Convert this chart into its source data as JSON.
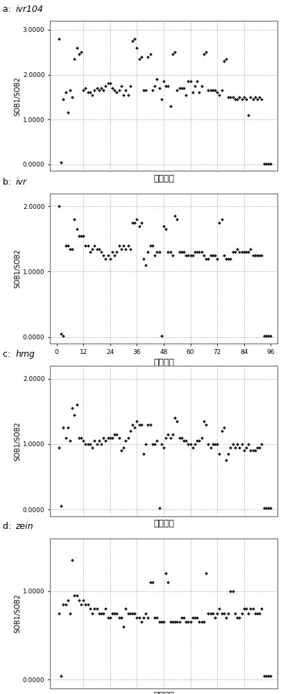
{
  "panels": [
    {
      "label": "a: ",
      "title_italic": "ivr104",
      "ylabel": "SOB1/SOB2",
      "xlabel": "样品数目",
      "ylim": [
        -0.15,
        3.2
      ],
      "yticks": [
        0.0,
        1.0,
        2.0,
        3.0
      ],
      "ytick_labels": [
        "0.0000",
        "1.0000",
        "2.0000",
        "3.0000"
      ],
      "show_xtick_labels": false,
      "xgrid_positions": [
        12,
        24,
        36,
        48,
        60,
        72,
        84
      ],
      "xlim": [
        -3,
        99
      ],
      "x": [
        1,
        2,
        3,
        4,
        5,
        6,
        7,
        8,
        9,
        10,
        11,
        12,
        13,
        14,
        15,
        16,
        17,
        18,
        19,
        20,
        21,
        22,
        23,
        24,
        25,
        26,
        27,
        28,
        29,
        30,
        31,
        32,
        33,
        34,
        35,
        36,
        37,
        38,
        39,
        40,
        41,
        42,
        43,
        44,
        45,
        46,
        47,
        48,
        49,
        50,
        51,
        52,
        53,
        54,
        55,
        56,
        57,
        58,
        59,
        60,
        61,
        62,
        63,
        64,
        65,
        66,
        67,
        68,
        69,
        70,
        71,
        72,
        73,
        74,
        75,
        76,
        77,
        78,
        79,
        80,
        81,
        82,
        83,
        84,
        85,
        86,
        87,
        88,
        89,
        90,
        91,
        92,
        93,
        94,
        95,
        96
      ],
      "y": [
        2.8,
        0.05,
        1.45,
        1.6,
        1.15,
        1.65,
        1.5,
        2.35,
        2.6,
        2.45,
        2.5,
        1.65,
        1.7,
        1.6,
        1.6,
        1.55,
        1.65,
        1.7,
        1.65,
        1.7,
        1.65,
        1.75,
        1.8,
        1.8,
        1.7,
        1.65,
        1.6,
        1.65,
        1.75,
        1.55,
        1.65,
        1.55,
        1.75,
        2.75,
        2.8,
        2.6,
        2.35,
        2.4,
        1.65,
        1.65,
        2.4,
        2.45,
        1.65,
        1.75,
        1.9,
        1.7,
        1.45,
        1.85,
        1.75,
        1.75,
        1.3,
        2.45,
        2.5,
        1.65,
        1.7,
        1.7,
        1.7,
        1.55,
        1.85,
        1.85,
        1.6,
        1.75,
        1.85,
        1.6,
        1.75,
        2.45,
        2.5,
        1.65,
        1.65,
        1.65,
        1.65,
        1.6,
        1.55,
        1.65,
        2.3,
        2.35,
        1.5,
        1.5,
        1.5,
        1.45,
        1.45,
        1.5,
        1.45,
        1.5,
        1.45,
        1.1,
        1.5,
        1.45,
        1.5,
        1.45,
        1.5,
        1.45,
        0.02,
        0.02,
        0.02,
        0.02
      ]
    },
    {
      "label": "b: ",
      "title_italic": "ivr",
      "ylabel": "SOB1/SOB2",
      "xlabel": "样品数目",
      "ylim": [
        -0.1,
        2.2
      ],
      "yticks": [
        0.0,
        1.0,
        2.0
      ],
      "ytick_labels": [
        "0.0000",
        "1.0000",
        "2.0000"
      ],
      "show_xtick_labels": true,
      "xgrid_positions": [
        12,
        24,
        36,
        48,
        60,
        72,
        84
      ],
      "xtick_positions": [
        0,
        12,
        24,
        36,
        48,
        60,
        72,
        84,
        96
      ],
      "xtick_labels": [
        "0",
        "12",
        "24",
        "36",
        "48",
        "60",
        "72",
        "84",
        "96"
      ],
      "xlim": [
        -3,
        99
      ],
      "x": [
        1,
        2,
        3,
        4,
        5,
        6,
        7,
        8,
        9,
        10,
        11,
        12,
        13,
        14,
        15,
        16,
        17,
        18,
        19,
        20,
        21,
        22,
        23,
        24,
        25,
        26,
        27,
        28,
        29,
        30,
        31,
        32,
        33,
        34,
        35,
        36,
        37,
        38,
        39,
        40,
        41,
        42,
        43,
        44,
        45,
        46,
        47,
        48,
        49,
        50,
        51,
        52,
        53,
        54,
        55,
        56,
        57,
        58,
        59,
        60,
        61,
        62,
        63,
        64,
        65,
        66,
        67,
        68,
        69,
        70,
        71,
        72,
        73,
        74,
        75,
        76,
        77,
        78,
        79,
        80,
        81,
        82,
        83,
        84,
        85,
        86,
        87,
        88,
        89,
        90,
        91,
        92,
        93,
        94,
        95,
        96
      ],
      "y": [
        2.0,
        0.05,
        0.02,
        1.4,
        1.4,
        1.35,
        1.35,
        1.8,
        1.65,
        1.55,
        1.55,
        1.55,
        1.4,
        1.4,
        1.3,
        1.35,
        1.4,
        1.35,
        1.35,
        1.3,
        1.25,
        1.2,
        1.25,
        1.2,
        1.3,
        1.25,
        1.3,
        1.4,
        1.35,
        1.4,
        1.35,
        1.4,
        1.35,
        1.75,
        1.75,
        1.8,
        1.7,
        1.75,
        1.2,
        1.1,
        1.3,
        1.4,
        1.4,
        1.25,
        1.3,
        1.3,
        0.02,
        1.7,
        1.65,
        1.3,
        1.3,
        1.25,
        1.85,
        1.8,
        1.3,
        1.3,
        1.3,
        1.25,
        1.25,
        1.25,
        1.25,
        1.3,
        1.3,
        1.3,
        1.3,
        1.25,
        1.2,
        1.2,
        1.25,
        1.25,
        1.25,
        1.2,
        1.75,
        1.8,
        1.25,
        1.2,
        1.2,
        1.2,
        1.3,
        1.3,
        1.35,
        1.3,
        1.3,
        1.3,
        1.3,
        1.3,
        1.35,
        1.25,
        1.25,
        1.25,
        1.25,
        1.25,
        0.02,
        0.02,
        0.02,
        0.02
      ]
    },
    {
      "label": "c: ",
      "title_italic": "hmg",
      "ylabel": "SOB1/SOB2",
      "xlabel": "样品数目",
      "ylim": [
        -0.1,
        2.2
      ],
      "yticks": [
        0.0,
        1.0,
        2.0
      ],
      "ytick_labels": [
        "0.0000",
        "1.0000",
        "2.0000"
      ],
      "show_xtick_labels": false,
      "xgrid_positions": [
        12,
        24,
        36,
        48,
        60,
        72,
        84
      ],
      "xlim": [
        -3,
        99
      ],
      "x": [
        1,
        2,
        3,
        4,
        5,
        6,
        7,
        8,
        9,
        10,
        11,
        12,
        13,
        14,
        15,
        16,
        17,
        18,
        19,
        20,
        21,
        22,
        23,
        24,
        25,
        26,
        27,
        28,
        29,
        30,
        31,
        32,
        33,
        34,
        35,
        36,
        37,
        38,
        39,
        40,
        41,
        42,
        43,
        44,
        45,
        46,
        47,
        48,
        49,
        50,
        51,
        52,
        53,
        54,
        55,
        56,
        57,
        58,
        59,
        60,
        61,
        62,
        63,
        64,
        65,
        66,
        67,
        68,
        69,
        70,
        71,
        72,
        73,
        74,
        75,
        76,
        77,
        78,
        79,
        80,
        81,
        82,
        83,
        84,
        85,
        86,
        87,
        88,
        89,
        90,
        91,
        92,
        93,
        94,
        95,
        96
      ],
      "y": [
        0.95,
        0.05,
        1.25,
        1.1,
        1.25,
        1.05,
        1.55,
        1.45,
        1.6,
        1.1,
        1.1,
        1.05,
        1.0,
        1.0,
        1.0,
        0.95,
        1.05,
        1.0,
        1.05,
        1.0,
        1.1,
        1.05,
        1.1,
        1.1,
        1.1,
        1.15,
        1.15,
        1.1,
        0.9,
        0.95,
        1.05,
        1.1,
        1.2,
        1.3,
        1.25,
        1.35,
        1.3,
        1.3,
        0.85,
        1.0,
        1.3,
        1.3,
        1.0,
        1.0,
        1.05,
        0.02,
        1.0,
        0.95,
        1.1,
        1.15,
        1.1,
        1.15,
        1.4,
        1.35,
        1.1,
        1.1,
        1.05,
        1.05,
        1.0,
        1.0,
        0.95,
        1.0,
        1.05,
        1.05,
        1.1,
        1.35,
        1.3,
        1.0,
        0.95,
        1.0,
        1.0,
        1.0,
        0.85,
        1.2,
        1.25,
        0.75,
        0.85,
        0.95,
        1.0,
        0.95,
        1.0,
        0.95,
        1.0,
        0.9,
        0.95,
        1.0,
        0.9,
        0.9,
        0.9,
        0.95,
        0.95,
        1.0,
        0.02,
        0.02,
        0.02,
        0.02
      ]
    },
    {
      "label": "d: ",
      "title_italic": "zein",
      "ylabel": "SOB1/SOB2",
      "xlabel": "样品数目",
      "ylim": [
        -0.1,
        1.6
      ],
      "yticks": [
        0.0,
        1.0
      ],
      "ytick_labels": [
        "0.0000",
        "1.0000"
      ],
      "show_xtick_labels": false,
      "xgrid_positions": [
        12,
        24,
        36,
        48,
        60,
        72,
        84
      ],
      "xlim": [
        -3,
        99
      ],
      "x": [
        1,
        2,
        3,
        4,
        5,
        6,
        7,
        8,
        9,
        10,
        11,
        12,
        13,
        14,
        15,
        16,
        17,
        18,
        19,
        20,
        21,
        22,
        23,
        24,
        25,
        26,
        27,
        28,
        29,
        30,
        31,
        32,
        33,
        34,
        35,
        36,
        37,
        38,
        39,
        40,
        41,
        42,
        43,
        44,
        45,
        46,
        47,
        48,
        49,
        50,
        51,
        52,
        53,
        54,
        55,
        56,
        57,
        58,
        59,
        60,
        61,
        62,
        63,
        64,
        65,
        66,
        67,
        68,
        69,
        70,
        71,
        72,
        73,
        74,
        75,
        76,
        77,
        78,
        79,
        80,
        81,
        82,
        83,
        84,
        85,
        86,
        87,
        88,
        89,
        90,
        91,
        92,
        93,
        94,
        95,
        96
      ],
      "y": [
        0.75,
        0.04,
        0.85,
        0.85,
        0.9,
        0.75,
        1.35,
        0.95,
        0.95,
        0.9,
        0.85,
        0.9,
        0.85,
        0.85,
        0.8,
        0.75,
        0.8,
        0.8,
        0.75,
        0.75,
        0.75,
        0.8,
        0.7,
        0.7,
        0.75,
        0.75,
        0.75,
        0.7,
        0.7,
        0.6,
        0.8,
        0.75,
        0.75,
        0.75,
        0.75,
        0.7,
        0.7,
        0.65,
        0.7,
        0.75,
        0.7,
        1.1,
        1.1,
        0.7,
        0.7,
        0.65,
        0.65,
        0.65,
        1.2,
        1.1,
        0.65,
        0.65,
        0.65,
        0.65,
        0.65,
        0.7,
        0.7,
        0.65,
        0.65,
        0.65,
        0.7,
        0.7,
        0.7,
        0.65,
        0.65,
        0.65,
        1.2,
        0.75,
        0.75,
        0.75,
        0.7,
        0.75,
        0.8,
        0.75,
        0.75,
        0.7,
        0.75,
        1.0,
        1.0,
        0.75,
        0.7,
        0.7,
        0.75,
        0.8,
        0.8,
        0.75,
        0.8,
        0.8,
        0.75,
        0.75,
        0.75,
        0.8,
        0.04,
        0.04,
        0.04,
        0.04
      ]
    }
  ],
  "dot_color": "#1a1a1a",
  "dot_size": 6,
  "background_color": "#ffffff",
  "grid_color": "#999999",
  "grid_style": ":"
}
